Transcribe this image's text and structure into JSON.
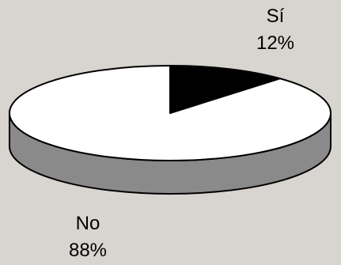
{
  "chart_data": {
    "type": "pie",
    "title": "",
    "slices": [
      {
        "label": "Sí",
        "value": 12,
        "value_label": "12%",
        "color": "#000000"
      },
      {
        "label": "No",
        "value": 88,
        "value_label": "88%",
        "color": "#ffffff"
      }
    ],
    "style": "3d",
    "grid": false,
    "legend": "none"
  },
  "colors": {
    "background": "#d8d4cf",
    "side_fill": "#8a8a8a",
    "outline": "#000000"
  }
}
